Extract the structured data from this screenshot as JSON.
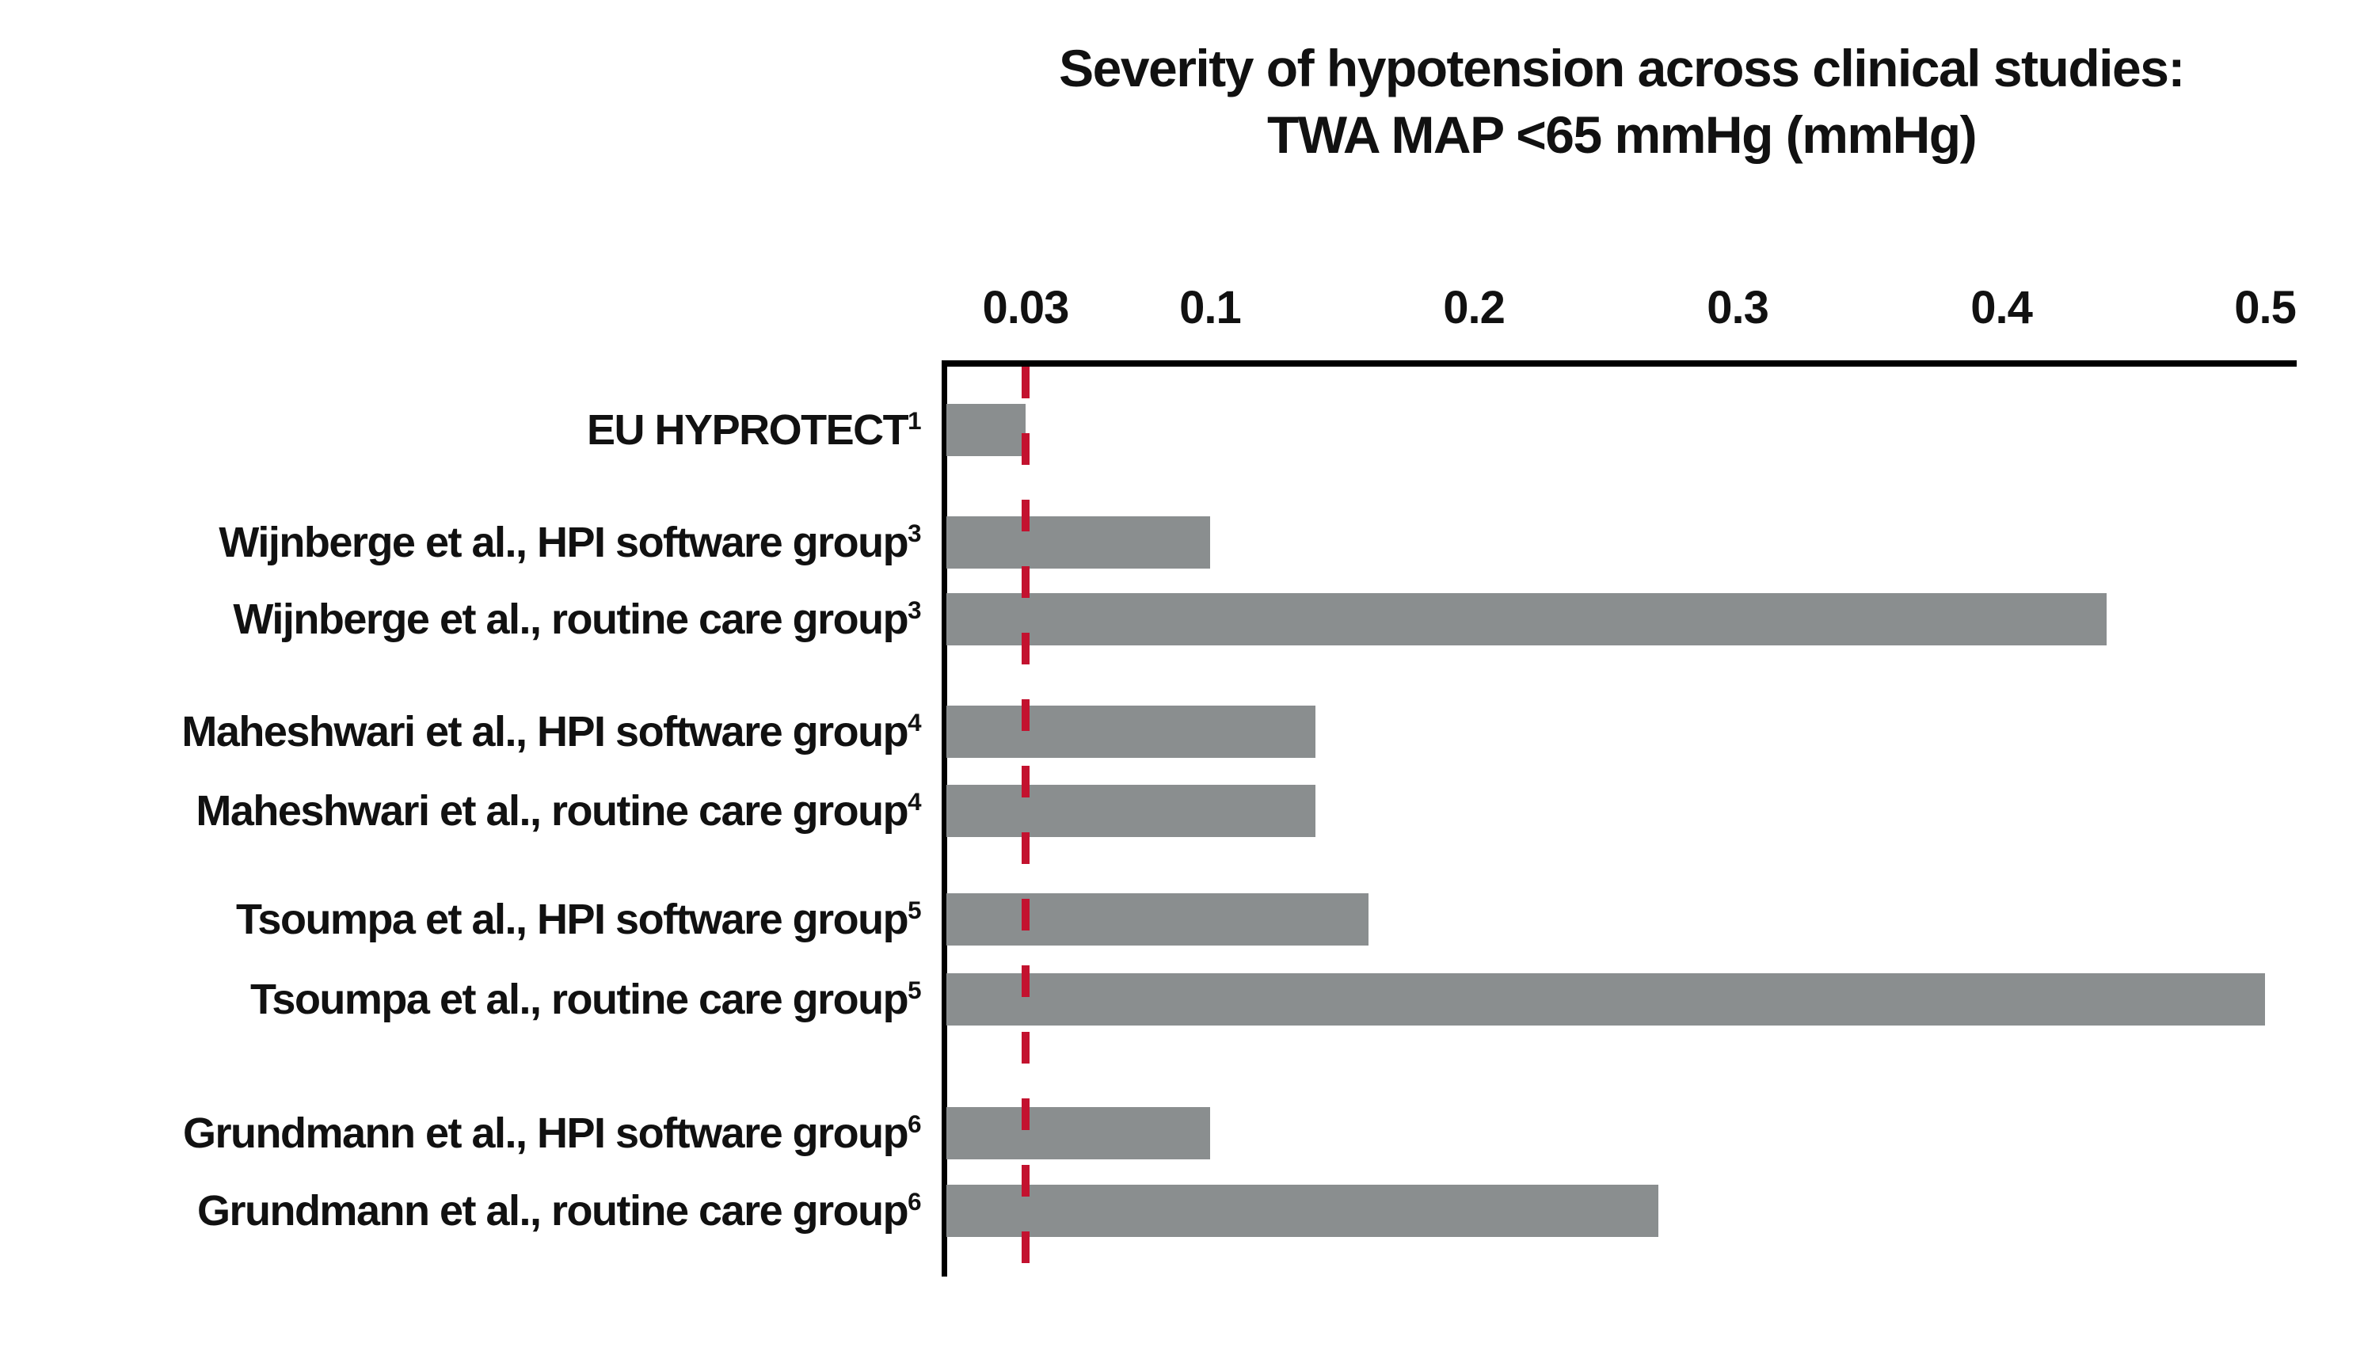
{
  "chart_data": {
    "type": "bar",
    "orientation": "horizontal",
    "title_lines": [
      "Severity of hypotension across clinical studies:",
      "TWA MAP <65 mmHg (mmHg)"
    ],
    "x_axis_position": "top",
    "x_tick_labels": [
      "0.03",
      "0.1",
      "0.2",
      "0.3",
      "0.4",
      "0.5"
    ],
    "x_tick_values": [
      0.03,
      0.1,
      0.2,
      0.3,
      0.4,
      0.5
    ],
    "xlim": [
      0,
      0.512
    ],
    "grid": false,
    "legend": false,
    "reference_line_x": 0.03,
    "bar_groups": [
      [
        0
      ],
      [
        1,
        2
      ],
      [
        3,
        4
      ],
      [
        5,
        6
      ],
      [
        7,
        8
      ]
    ],
    "bars": [
      {
        "label": "EU HYPROTECT",
        "footnote": "1",
        "value": 0.03
      },
      {
        "label": "Wijnberge et al., HPI software group",
        "footnote": "3",
        "value": 0.1
      },
      {
        "label": "Wijnberge et al., routine care group",
        "footnote": "3",
        "value": 0.44
      },
      {
        "label": "Maheshwari et al., HPI software group",
        "footnote": "4",
        "value": 0.14
      },
      {
        "label": "Maheshwari et al., routine care group",
        "footnote": "4",
        "value": 0.14
      },
      {
        "label": "Tsoumpa et al., HPI software group",
        "footnote": "5",
        "value": 0.16
      },
      {
        "label": "Tsoumpa et al., routine care group",
        "footnote": "5",
        "value": 0.5
      },
      {
        "label": "Grundmann et al., HPI software group",
        "footnote": "6",
        "value": 0.1
      },
      {
        "label": "Grundmann et al., routine care group",
        "footnote": "6",
        "value": 0.27
      }
    ]
  },
  "colors": {
    "bar": "#8A8E8F",
    "axis": "#000000",
    "reference_line": "#C3122F",
    "text": "#111111",
    "background": "#ffffff"
  }
}
